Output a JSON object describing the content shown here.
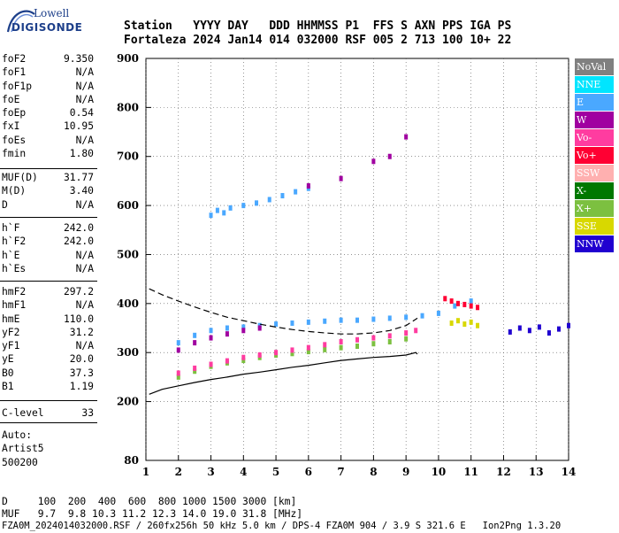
{
  "logo": {
    "top": "Lowell",
    "bottom": "DIGISONDE"
  },
  "header": {
    "line1": "Station   YYYY DAY   DDD HHMMSS P1  FFS S AXN PPS IGA PS",
    "line2": "Fortaleza 2024 Jan14 014 032000 RSF 005 2 713 100 10+ 22"
  },
  "params": {
    "group1": [
      [
        "foF2",
        "9.350"
      ],
      [
        "foF1",
        "N/A"
      ],
      [
        "foF1p",
        "N/A"
      ],
      [
        "foE",
        "N/A"
      ],
      [
        "foEp",
        "0.54"
      ],
      [
        "fxI",
        "10.95"
      ],
      [
        "foEs",
        "N/A"
      ],
      [
        "fmin",
        "1.80"
      ]
    ],
    "group2": [
      [
        "MUF(D)",
        "31.77"
      ],
      [
        "M(D)",
        "3.40"
      ],
      [
        "D",
        "N/A"
      ]
    ],
    "group3": [
      [
        "h`F",
        "242.0"
      ],
      [
        "h`F2",
        "242.0"
      ],
      [
        "h`E",
        "N/A"
      ],
      [
        "h`Es",
        "N/A"
      ]
    ],
    "group4": [
      [
        "hmF2",
        "297.2"
      ],
      [
        "hmF1",
        "N/A"
      ],
      [
        "hmE",
        "110.0"
      ],
      [
        "yF2",
        "31.2"
      ],
      [
        "yF1",
        "N/A"
      ],
      [
        "yE",
        "20.0"
      ],
      [
        "B0",
        "37.3"
      ],
      [
        "B1",
        "1.19"
      ]
    ],
    "group5": [
      [
        "C-level",
        "33"
      ]
    ],
    "auto": [
      "Auto:",
      "Artist5",
      "500200"
    ]
  },
  "legend": [
    {
      "label": "NoVal",
      "color": "#808080"
    },
    {
      "label": "NNE",
      "color": "#00e5ff"
    },
    {
      "label": "E",
      "color": "#4aa8ff"
    },
    {
      "label": "W",
      "color": "#a000a0"
    },
    {
      "label": "Vo-",
      "color": "#ff3ca0"
    },
    {
      "label": "Vo+",
      "color": "#ff0033"
    },
    {
      "label": "SSW",
      "color": "#ffb0b0"
    },
    {
      "label": "X-",
      "color": "#007800"
    },
    {
      "label": "X+",
      "color": "#7cc040"
    },
    {
      "label": "SSE",
      "color": "#d8d800"
    },
    {
      "label": "NNW",
      "color": "#2000d0"
    }
  ],
  "footer": {
    "line1": "D     100  200  400  600  800 1000 1500 3000 [km]",
    "line2": "MUF   9.7  9.8 10.3 11.2 12.3 14.0 19.0 31.8 [MHz]",
    "line3": "FZA0M_2024014032000.RSF / 260fx256h 50 kHz 5.0 km / DPS-4 FZA0M 904 / 3.9 S 321.6 E   Ion2Png 1.3.20"
  },
  "chart_data": {
    "type": "scatter",
    "title": "",
    "xlabel": "",
    "ylabel": "",
    "xlim": [
      1,
      14
    ],
    "ylim": [
      80,
      900
    ],
    "xticks": [
      1,
      2,
      3,
      4,
      5,
      6,
      7,
      8,
      9,
      10,
      11,
      12,
      13,
      14
    ],
    "yticks": [
      80,
      200,
      300,
      400,
      500,
      600,
      700,
      800,
      900
    ],
    "curves": [
      {
        "name": "",
        "style": "dashed",
        "x": [
          1.1,
          1.5,
          2.0,
          2.5,
          3.0,
          3.5,
          4.0,
          4.5,
          5.0,
          5.5,
          6.0,
          6.5,
          7.0,
          7.5,
          8.0,
          8.5,
          9.0,
          9.35
        ],
        "y": [
          430,
          418,
          405,
          393,
          382,
          372,
          365,
          358,
          352,
          347,
          343,
          340,
          338,
          338,
          340,
          345,
          355,
          370
        ]
      },
      {
        "name": "",
        "style": "solid",
        "x": [
          1.1,
          1.5,
          2.0,
          2.5,
          3.0,
          3.5,
          4.0,
          4.5,
          5.0,
          5.5,
          6.0,
          6.5,
          7.0,
          7.5,
          8.0,
          8.5,
          9.0,
          9.3,
          9.35
        ],
        "y": [
          215,
          225,
          232,
          239,
          245,
          250,
          256,
          260,
          265,
          270,
          274,
          279,
          284,
          287,
          290,
          292,
          295,
          300,
          297
        ]
      }
    ],
    "traces": [
      {
        "name": "X+",
        "x": [
          2.0,
          2.5,
          3.0,
          3.5,
          4.0,
          4.5,
          5.0,
          5.5,
          6.0,
          6.5,
          7.0,
          7.5,
          8.0,
          8.5,
          9.0
        ],
        "y": [
          250,
          262,
          272,
          279,
          284,
          290,
          295,
          298,
          302,
          306,
          310,
          313,
          318,
          322,
          328
        ]
      },
      {
        "name": "Vo-",
        "x": [
          2.0,
          2.5,
          3.0,
          3.5,
          4.0,
          4.5,
          5.0,
          5.5,
          6.0,
          6.5,
          7.0,
          7.5,
          8.0,
          8.5,
          9.0,
          9.3
        ],
        "y": [
          258,
          268,
          276,
          283,
          290,
          295,
          300,
          305,
          310,
          316,
          322,
          326,
          330,
          334,
          340,
          345
        ]
      },
      {
        "name": "E",
        "x": [
          2.0,
          2.5,
          3.0,
          3.5,
          4.0,
          4.5,
          5.0,
          5.5,
          6.0,
          6.5,
          7.0,
          7.5,
          8.0,
          8.5,
          9.0,
          9.5,
          10.0,
          10.5,
          11.0
        ],
        "y": [
          320,
          335,
          345,
          350,
          352,
          355,
          358,
          360,
          362,
          364,
          366,
          366,
          368,
          370,
          372,
          375,
          380,
          395,
          405
        ]
      },
      {
        "name": "W",
        "x": [
          2.0,
          2.5,
          3.0,
          3.5,
          4.0,
          4.5
        ],
        "y": [
          305,
          320,
          330,
          338,
          345,
          350
        ]
      },
      {
        "name": "Vo+",
        "x": [
          10.2,
          10.4,
          10.6,
          10.8,
          11.0,
          11.2
        ],
        "y": [
          410,
          405,
          400,
          398,
          395,
          392
        ]
      },
      {
        "name": "SSE",
        "x": [
          10.4,
          10.6,
          10.8,
          11.0,
          11.2
        ],
        "y": [
          360,
          365,
          358,
          362,
          355
        ]
      },
      {
        "name": "NNW",
        "x": [
          12.2,
          12.5,
          12.8,
          13.1,
          13.4,
          13.7,
          14.0
        ],
        "y": [
          342,
          350,
          345,
          352,
          340,
          348,
          355
        ]
      },
      {
        "name": "E",
        "x": [
          3.0,
          3.2,
          3.4,
          3.6,
          4.0,
          4.4,
          4.8,
          5.2,
          5.6,
          6.0
        ],
        "y": [
          580,
          590,
          585,
          595,
          600,
          605,
          612,
          620,
          628,
          635
        ]
      },
      {
        "name": "W",
        "x": [
          6.0,
          7.0,
          8.0,
          8.5,
          9.0
        ],
        "y": [
          640,
          655,
          690,
          700,
          740
        ]
      }
    ]
  }
}
